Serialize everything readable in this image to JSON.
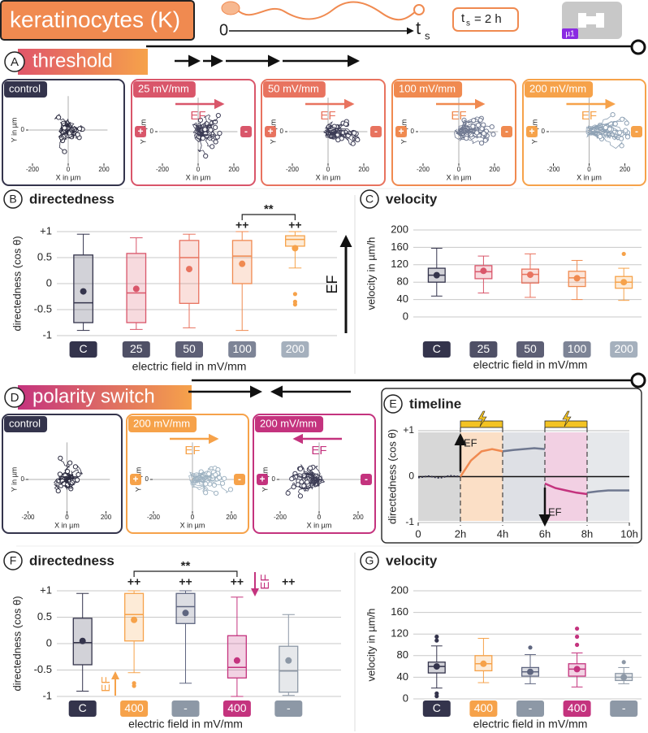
{
  "header": {
    "title": "keratinocytes (K)",
    "start_label": "0",
    "end_label": "t",
    "end_sub": "s",
    "duration_symbol": "t",
    "duration_sub": "s",
    "duration_text": "= 2 h",
    "chip_label": "µ1"
  },
  "sections": [
    {
      "letter": "A",
      "title": "threshold"
    },
    {
      "letter": "D",
      "title": "polarity switch"
    }
  ],
  "trajectories": [
    {
      "x_label": "X in µm",
      "y_label": "Y in µm",
      "xlim": [
        -250,
        250
      ],
      "ylim": [
        -250,
        250
      ],
      "xticks": [
        -200,
        0,
        200
      ],
      "yticks": [
        0
      ],
      "panels": [
        {
          "label": "control",
          "color": "#34344c"
        },
        {
          "label": "25 mV/mm",
          "color": "#d9566a",
          "field": "EF",
          "left_pole": "+",
          "right_pole": "-"
        },
        {
          "label": "50 mV/mm",
          "color": "#e8735f",
          "field": "EF",
          "left_pole": "+",
          "right_pole": "-"
        },
        {
          "label": "100 mV/mm",
          "color": "#f08a50",
          "field": "EF",
          "left_pole": "+",
          "right_pole": "-"
        },
        {
          "label": "200 mV/mm",
          "color": "#f6a24a",
          "field": "EF",
          "left_pole": "+",
          "right_pole": "-"
        }
      ]
    },
    {
      "x_label": "X in µm",
      "y_label": "Y in µm",
      "xlim": [
        -250,
        250
      ],
      "ylim": [
        -250,
        250
      ],
      "xticks": [
        -200,
        0,
        200
      ],
      "yticks": [
        0
      ],
      "panels": [
        {
          "label": "control",
          "color": "#34344c"
        },
        {
          "label": "200 mV/mm",
          "color": "#f6a24a",
          "field": "EF",
          "left_pole": "+",
          "right_pole": "-"
        },
        {
          "label": "200 mV/mm",
          "color": "#c4337e",
          "field": "EF",
          "left_pole": "+",
          "right_pole": "-"
        }
      ]
    }
  ],
  "chart_data": [
    {
      "type": "box",
      "panel": "B",
      "title": "directedness",
      "y_label": "directedness (cos θ)",
      "x_label": "electric field in mV/mm",
      "ylim": [
        -1,
        1
      ],
      "yticks": [
        -1,
        -0.5,
        0,
        0.5,
        {
          "value": 1,
          "label": "+1"
        }
      ],
      "categories": [
        "C",
        "25",
        "50",
        "100",
        "200"
      ],
      "label_colors": [
        "#34344c",
        "#4f5066",
        "#5d5f75",
        "#7d8496",
        "#a5b0bd"
      ],
      "boxes": [
        {
          "color": "#34344c",
          "low": -0.9,
          "q1": -0.75,
          "median": -0.37,
          "q3": 0.55,
          "high": 0.95,
          "mean": -0.15,
          "outliers": []
        },
        {
          "color": "#d9566a",
          "low": -0.88,
          "q1": -0.75,
          "median": -0.18,
          "q3": 0.58,
          "high": 0.88,
          "mean": -0.1,
          "outliers": []
        },
        {
          "color": "#e8735f",
          "low": -0.85,
          "q1": -0.38,
          "median": 0.5,
          "q3": 0.83,
          "high": 0.95,
          "mean": 0.28,
          "outliers": []
        },
        {
          "color": "#f08a50",
          "low": -0.9,
          "q1": 0,
          "median": 0.53,
          "q3": 0.83,
          "high": 1,
          "mean": 0.38,
          "outliers": []
        },
        {
          "color": "#f6a24a",
          "low": 0.3,
          "q1": 0.72,
          "median": 0.85,
          "q3": 0.92,
          "high": 1,
          "mean": 0.68,
          "outliers": [
            -0.2,
            -0.35,
            -0.4
          ]
        }
      ],
      "significance": [
        null,
        null,
        null,
        "++",
        "++"
      ],
      "bracket_label": "**",
      "annotations": [
        "EF"
      ]
    },
    {
      "type": "box",
      "panel": "C",
      "title": "velocity",
      "y_label": "velocity in µm/h",
      "x_label": "electric field in mV/mm",
      "ylim": [
        0,
        200
      ],
      "yticks": [
        0,
        40,
        80,
        120,
        160,
        200
      ],
      "categories": [
        "C",
        "25",
        "50",
        "100",
        "200"
      ],
      "label_colors": [
        "#34344c",
        "#4f5066",
        "#5d5f75",
        "#7d8496",
        "#a5b0bd"
      ],
      "boxes": [
        {
          "color": "#34344c",
          "low": 48,
          "q1": 80,
          "median": 96,
          "q3": 112,
          "high": 158,
          "mean": 96,
          "outliers": []
        },
        {
          "color": "#d9566a",
          "low": 55,
          "q1": 88,
          "median": 104,
          "q3": 118,
          "high": 140,
          "mean": 106,
          "outliers": []
        },
        {
          "color": "#e8735f",
          "low": 45,
          "q1": 78,
          "median": 98,
          "q3": 110,
          "high": 145,
          "mean": 97,
          "outliers": []
        },
        {
          "color": "#f08a50",
          "low": 40,
          "q1": 70,
          "median": 90,
          "q3": 105,
          "high": 130,
          "mean": 89,
          "outliers": []
        },
        {
          "color": "#f6a24a",
          "low": 38,
          "q1": 66,
          "median": 80,
          "q3": 93,
          "high": 112,
          "mean": 80,
          "outliers": [
            145
          ]
        }
      ]
    },
    {
      "type": "line",
      "panel": "E",
      "title": "timeline",
      "y_label": "directedness (cos θ)",
      "xlim": [
        0,
        10
      ],
      "xticks": [
        0,
        {
          "value": 2,
          "label": "2h"
        },
        {
          "value": 4,
          "label": "4h"
        },
        {
          "value": 6,
          "label": "6h"
        },
        {
          "value": 8,
          "label": "8h"
        },
        {
          "value": 10,
          "label": "10h"
        }
      ],
      "ylim": [
        -1,
        1
      ],
      "yticks": [
        -1,
        0,
        {
          "value": 1,
          "label": "+1"
        }
      ],
      "x": [
        0,
        0.5,
        1,
        1.5,
        2,
        2.5,
        3,
        3.5,
        4,
        4.5,
        5,
        5.5,
        6,
        6.5,
        7,
        7.5,
        8,
        8.5,
        9,
        9.5,
        10
      ],
      "series": [
        {
          "color": "#34344c",
          "values": [
            -0.02,
            0.01,
            -0.03,
            0.02,
            0.0,
            null,
            null,
            null,
            null,
            null,
            null,
            null,
            null,
            null,
            null,
            null,
            null,
            null,
            null,
            null,
            null
          ]
        },
        {
          "color": "#f08a50",
          "values": [
            null,
            null,
            null,
            null,
            0.0,
            0.35,
            0.55,
            0.6,
            0.55,
            null,
            null,
            null,
            null,
            null,
            null,
            null,
            null,
            null,
            null,
            null,
            null
          ]
        },
        {
          "color": "#6f7890",
          "values": [
            null,
            null,
            null,
            null,
            null,
            null,
            null,
            null,
            0.55,
            0.58,
            0.6,
            0.62,
            0.6,
            null,
            null,
            null,
            -0.35,
            -0.32,
            -0.3,
            -0.3,
            -0.3
          ]
        },
        {
          "color": "#c4337e",
          "values": [
            null,
            null,
            null,
            null,
            null,
            null,
            null,
            null,
            null,
            null,
            null,
            null,
            -0.15,
            -0.25,
            -0.3,
            -0.35,
            -0.38,
            null,
            null,
            null,
            null
          ]
        }
      ],
      "annotations": [
        "EF",
        "EF"
      ]
    },
    {
      "type": "box",
      "panel": "F",
      "title": "directedness",
      "y_label": "directedness (cos θ)",
      "x_label": "electric field in mV/mm",
      "ylim": [
        -1,
        1
      ],
      "yticks": [
        -1,
        -0.5,
        0,
        0.5,
        {
          "value": 1,
          "label": "+1"
        }
      ],
      "categories": [
        "C",
        "400",
        "-",
        "400",
        "-"
      ],
      "label_colors": [
        "#34344c",
        "#f6a24a",
        "#8d98a6",
        "#c4337e",
        "#8d98a6"
      ],
      "boxes": [
        {
          "color": "#34344c",
          "low": -0.9,
          "q1": -0.4,
          "median": 0.02,
          "q3": 0.48,
          "high": 0.95,
          "mean": 0.05,
          "outliers": []
        },
        {
          "color": "#f6a24a",
          "low": -0.55,
          "q1": 0.05,
          "median": 0.55,
          "q3": 0.95,
          "high": 1,
          "mean": 0.45,
          "outliers": [
            -0.75,
            -0.8
          ]
        },
        {
          "color": "#5f6680",
          "low": -0.75,
          "q1": 0.38,
          "median": 0.7,
          "q3": 0.95,
          "high": 1,
          "mean": 0.58,
          "outliers": []
        },
        {
          "color": "#c4337e",
          "low": -1,
          "q1": -0.65,
          "median": -0.45,
          "q3": 0.15,
          "high": 0.88,
          "mean": -0.32,
          "outliers": []
        },
        {
          "color": "#8d98a6",
          "low": -0.98,
          "q1": -0.92,
          "median": -0.52,
          "q3": -0.05,
          "high": 0.55,
          "mean": -0.32,
          "outliers": []
        }
      ],
      "significance": [
        null,
        "++",
        "++",
        "++",
        "++"
      ],
      "bracket_label": "**",
      "annotations": [
        "EF",
        "EF"
      ]
    },
    {
      "type": "box",
      "panel": "G",
      "title": "velocity",
      "y_label": "velocity in µm/h",
      "x_label": "electric field in mV/mm",
      "ylim": [
        0,
        200
      ],
      "yticks": [
        0,
        40,
        80,
        120,
        160,
        200
      ],
      "categories": [
        "C",
        "400",
        "-",
        "400",
        "-"
      ],
      "label_colors": [
        "#34344c",
        "#f6a24a",
        "#8d98a6",
        "#c4337e",
        "#8d98a6"
      ],
      "boxes": [
        {
          "color": "#34344c",
          "low": 20,
          "q1": 48,
          "median": 60,
          "q3": 68,
          "high": 98,
          "mean": 60,
          "outliers": [
            5,
            10,
            108,
            115
          ]
        },
        {
          "color": "#f6a24a",
          "low": 30,
          "q1": 52,
          "median": 65,
          "q3": 80,
          "high": 112,
          "mean": 65,
          "outliers": []
        },
        {
          "color": "#5f6680",
          "low": 28,
          "q1": 42,
          "median": 50,
          "q3": 58,
          "high": 82,
          "mean": 50,
          "outliers": [
            95
          ]
        },
        {
          "color": "#c4337e",
          "low": 22,
          "q1": 42,
          "median": 55,
          "q3": 65,
          "high": 85,
          "mean": 55,
          "outliers": [
            100,
            115,
            130
          ]
        },
        {
          "color": "#8d98a6",
          "low": 28,
          "q1": 34,
          "median": 40,
          "q3": 47,
          "high": 58,
          "mean": 40,
          "outliers": [
            68
          ]
        }
      ]
    }
  ]
}
